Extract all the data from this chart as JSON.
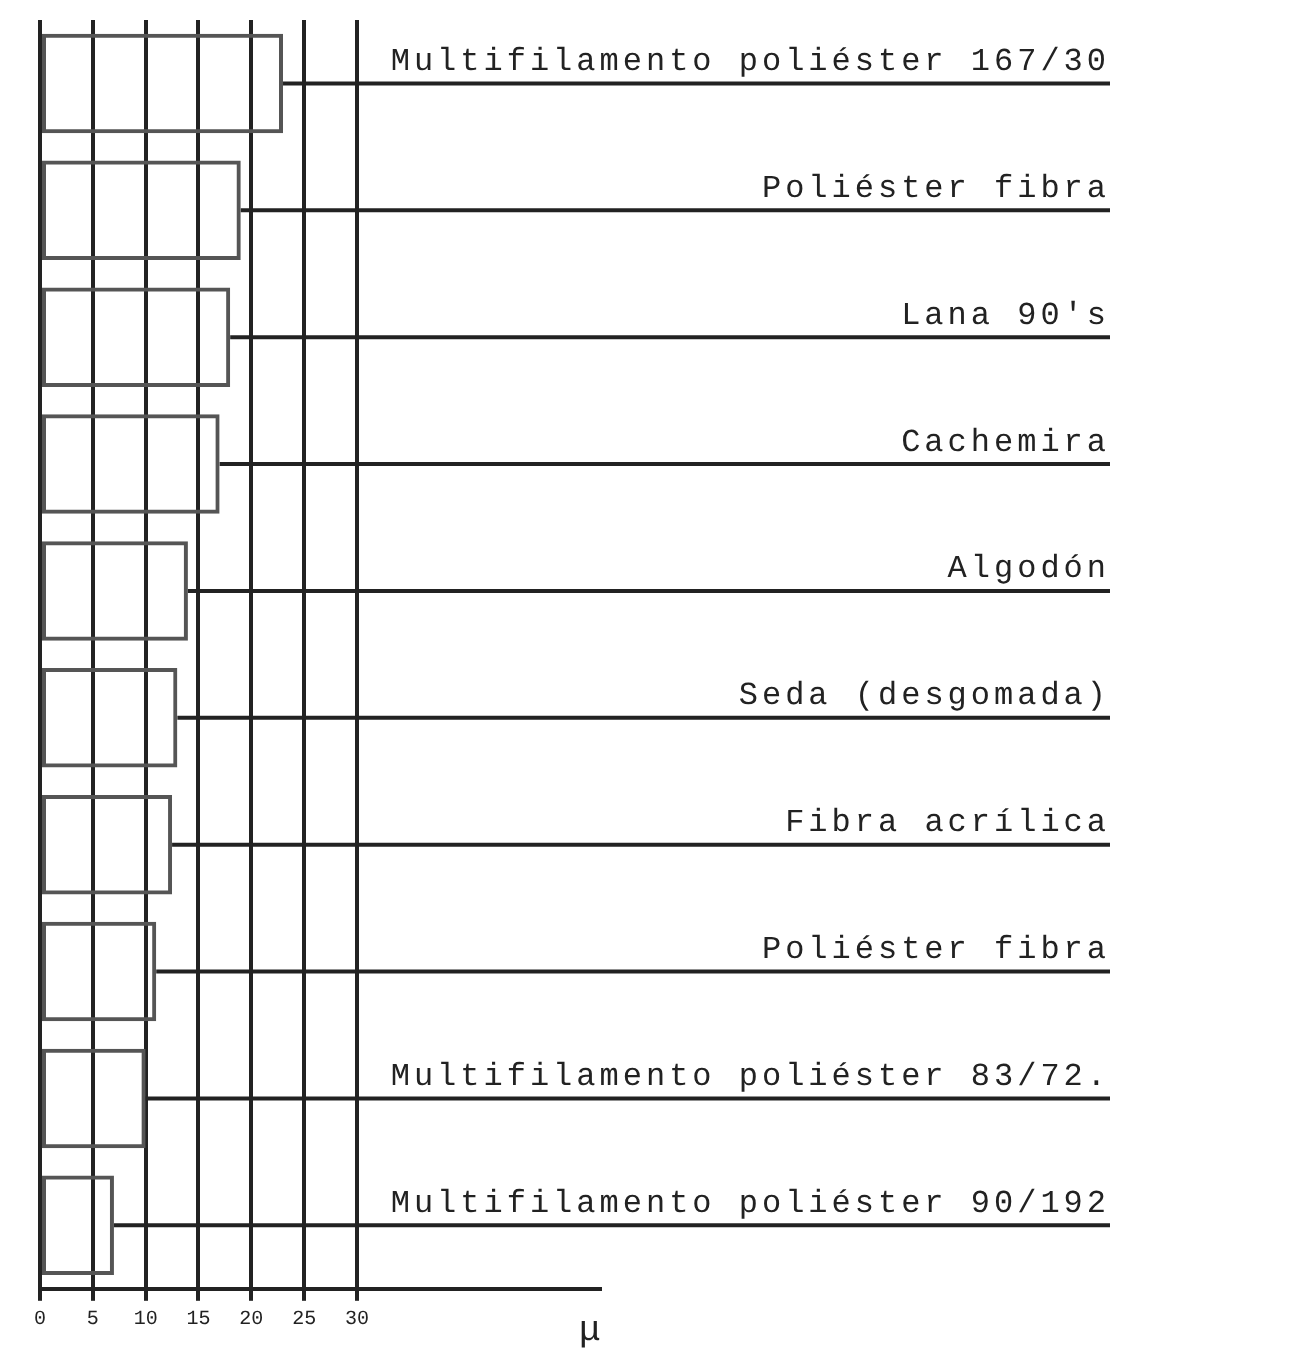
{
  "chart_data": {
    "type": "bar",
    "orientation": "horizontal",
    "categories": [
      "Multifilamento poliéster 167/30",
      "Poliéster fibra",
      "Lana 90's",
      "Cachemira",
      "Algodón",
      "Seda (desgomada)",
      "Fibra acrílica",
      "Poliéster fibra",
      "Multifilamento poliéster 83/72.",
      "Multifilamento poliéster 90/192"
    ],
    "values": [
      23,
      19,
      18,
      17,
      14,
      13,
      12.5,
      11,
      10,
      7
    ],
    "color": "#555555",
    "xlabel": "µ",
    "xlim": [
      0,
      53
    ],
    "xticks": [
      0,
      5,
      10,
      15,
      20,
      25,
      30
    ],
    "grid": "x",
    "legend": false
  }
}
